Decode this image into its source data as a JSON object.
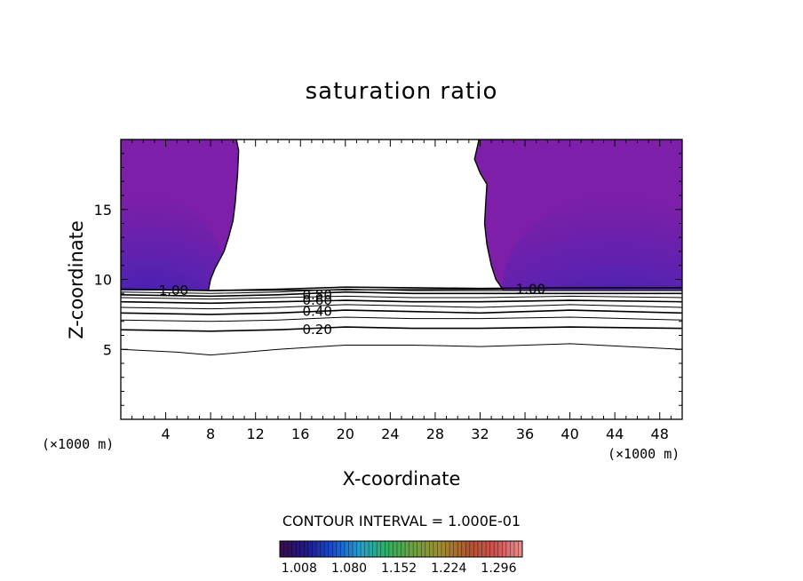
{
  "chart_data": {
    "type": "contour",
    "title": "saturation ratio",
    "xlabel": "X-coordinate",
    "ylabel": "Z-coordinate",
    "x_unit_label": "(×1000 m)",
    "x_ticks": [
      4,
      8,
      12,
      16,
      20,
      24,
      28,
      32,
      36,
      40,
      44,
      48
    ],
    "y_ticks": [
      5,
      10,
      15
    ],
    "xlim": [
      0,
      50
    ],
    "ylim": [
      0,
      20
    ],
    "contour_interval_label": "CONTOUR INTERVAL = 1.000E-01",
    "contour_labels": [
      {
        "text": "1.00",
        "x": 4.7,
        "z": 9.2
      },
      {
        "text": "1.00",
        "x": 36.5,
        "z": 9.3
      },
      {
        "text": "0.80",
        "x": 17.5,
        "z": 8.9
      },
      {
        "text": "0.60",
        "x": 17.5,
        "z": 8.5
      },
      {
        "text": "0.40",
        "x": 17.5,
        "z": 7.7
      },
      {
        "text": "0.20",
        "x": 17.5,
        "z": 6.4
      }
    ],
    "contour_lines": [
      {
        "level": 0.1,
        "x": [
          0,
          5,
          8,
          14,
          20,
          26,
          32,
          40,
          50
        ],
        "z": [
          5.0,
          4.8,
          4.6,
          5.0,
          5.3,
          5.3,
          5.2,
          5.4,
          5.0
        ]
      },
      {
        "level": 0.2,
        "x": [
          0,
          8,
          14,
          20,
          26,
          32,
          40,
          50
        ],
        "z": [
          6.4,
          6.3,
          6.4,
          6.6,
          6.5,
          6.5,
          6.6,
          6.5
        ]
      },
      {
        "level": 0.3,
        "x": [
          0,
          8,
          14,
          20,
          26,
          32,
          40,
          50
        ],
        "z": [
          7.1,
          7.0,
          7.1,
          7.3,
          7.2,
          7.2,
          7.3,
          7.1
        ]
      },
      {
        "level": 0.4,
        "x": [
          0,
          8,
          14,
          20,
          26,
          32,
          40,
          50
        ],
        "z": [
          7.6,
          7.5,
          7.6,
          7.8,
          7.7,
          7.6,
          7.8,
          7.6
        ]
      },
      {
        "level": 0.5,
        "x": [
          0,
          8,
          14,
          20,
          26,
          32,
          40,
          50
        ],
        "z": [
          8.0,
          7.9,
          8.0,
          8.2,
          8.1,
          8.0,
          8.2,
          8.0
        ]
      },
      {
        "level": 0.6,
        "x": [
          0,
          8,
          14,
          20,
          26,
          32,
          40,
          50
        ],
        "z": [
          8.4,
          8.3,
          8.4,
          8.5,
          8.4,
          8.4,
          8.5,
          8.4
        ]
      },
      {
        "level": 0.7,
        "x": [
          0,
          8,
          14,
          20,
          26,
          32,
          40,
          50
        ],
        "z": [
          8.7,
          8.6,
          8.7,
          8.8,
          8.7,
          8.7,
          8.8,
          8.7
        ]
      },
      {
        "level": 0.8,
        "x": [
          0,
          8,
          14,
          20,
          26,
          32,
          40,
          50
        ],
        "z": [
          8.9,
          8.8,
          8.9,
          9.1,
          9.0,
          9.0,
          9.0,
          9.0
        ]
      },
      {
        "level": 0.9,
        "x": [
          0,
          8,
          14,
          20,
          26,
          32,
          40,
          50
        ],
        "z": [
          9.1,
          9.0,
          9.1,
          9.3,
          9.2,
          9.2,
          9.2,
          9.2
        ]
      },
      {
        "level": 1.0,
        "x": [
          0,
          4,
          8,
          14,
          20,
          26,
          32,
          40,
          50
        ],
        "z": [
          9.3,
          9.25,
          9.2,
          9.3,
          9.45,
          9.4,
          9.35,
          9.4,
          9.4
        ]
      }
    ],
    "supersaturated_regions": [
      {
        "name": "left",
        "boundary_x": [
          0,
          7.8,
          8.0,
          8.4,
          9.2,
          9.6,
          10.0,
          10.2,
          10.3,
          10.4,
          10.5,
          10.3,
          0
        ],
        "boundary_z": [
          9.3,
          9.2,
          10.0,
          10.8,
          12.0,
          13.0,
          14.2,
          15.5,
          16.5,
          17.5,
          19.2,
          20,
          20
        ]
      },
      {
        "name": "right",
        "boundary_x": [
          50,
          50,
          31.9,
          31.5,
          32.0,
          32.6,
          32.5,
          32.4,
          32.6,
          33.0,
          33.4,
          34.0,
          50
        ],
        "boundary_z": [
          9.4,
          20,
          20,
          18.6,
          17.6,
          16.8,
          15.5,
          14.0,
          12.5,
          11.0,
          10.0,
          9.3,
          9.4
        ]
      }
    ],
    "colorbar": {
      "colors": [
        "#3a0d4a",
        "#1e1a8c",
        "#1a50d0",
        "#25a0c8",
        "#30b060",
        "#70a040",
        "#a08c30",
        "#b05530",
        "#d05050",
        "#e89090"
      ],
      "fill_colors": {
        "base": "#7d1fa8",
        "mid": "#5a22b0",
        "deep": "#3a1fb5",
        "core": "#1f2fc8",
        "peak": "#1fa0ff"
      },
      "tick_labels": [
        "1.008",
        "1.080",
        "1.152",
        "1.224",
        "1.296"
      ],
      "tick_values": [
        1.008,
        1.08,
        1.152,
        1.224,
        1.296
      ],
      "range": [
        0.98,
        1.33
      ]
    }
  }
}
